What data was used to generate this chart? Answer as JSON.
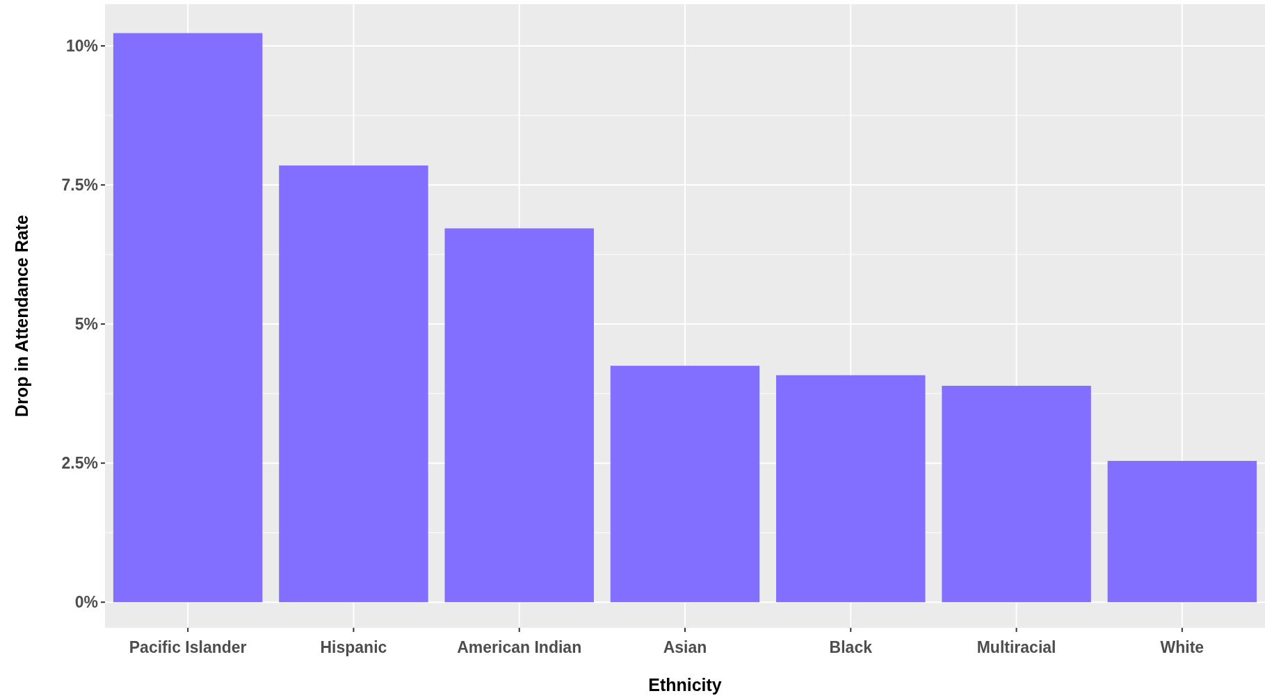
{
  "chart_data": {
    "type": "bar",
    "xlabel": "Ethnicity",
    "ylabel": "Drop in Attendance Rate",
    "categories": [
      "Pacific Islander",
      "Hispanic",
      "American Indian",
      "Asian",
      "Black",
      "Multiracial",
      "White"
    ],
    "values": [
      10.23,
      7.85,
      6.72,
      4.25,
      4.08,
      3.89,
      2.54
    ],
    "color": "#836fff",
    "ylim": [
      -0.46,
      10.75
    ],
    "yticks": [
      {
        "value": 0,
        "label": "0%"
      },
      {
        "value": 2.5,
        "label": "2.5%"
      },
      {
        "value": 5,
        "label": "5%"
      },
      {
        "value": 7.5,
        "label": "7.5%"
      },
      {
        "value": 10,
        "label": "10%"
      }
    ],
    "grid": true
  }
}
